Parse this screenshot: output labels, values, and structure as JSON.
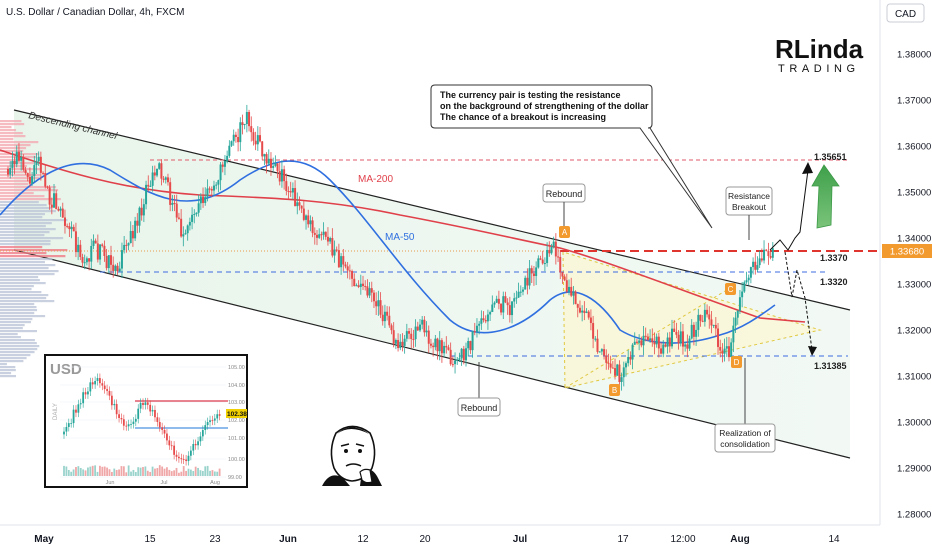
{
  "header": {
    "symbol_title": "U.S. Dollar / Canadian Dollar, 4h, FXCM",
    "currency": "CAD"
  },
  "logo": {
    "text_top": "RLinda",
    "text_bottom": "TRADING"
  },
  "chart_data": {
    "type": "candlestick",
    "title": "U.S. Dollar / Canadian Dollar, 4h, FXCM",
    "ylim": [
      1.275,
      1.39
    ],
    "price_ticks": [
      "1.38000",
      "1.37000",
      "1.36000",
      "1.35000",
      "1.34000",
      "1.33000",
      "1.32000",
      "1.31000",
      "1.30000",
      "1.29000",
      "1.28000"
    ],
    "price_tick_values": [
      1.38,
      1.37,
      1.36,
      1.35,
      1.34,
      1.33,
      1.32,
      1.31,
      1.3,
      1.29,
      1.28
    ],
    "current_price": "1.33680",
    "time_ticks": [
      "May",
      "15",
      "23",
      "Jun",
      "12",
      "20",
      "Jul",
      "17",
      "12:00",
      "Aug",
      "14"
    ],
    "levels": [
      {
        "label": "1.35651",
        "value": 1.35651,
        "color": "#e05a6a"
      },
      {
        "label": "1.3370",
        "value": 1.337,
        "color": "#e0342f"
      },
      {
        "label": "1.3320",
        "value": 1.332,
        "color": "#3d6be0"
      },
      {
        "label": "1.31385",
        "value": 1.31385,
        "color": "#3d6be0"
      }
    ],
    "series": [
      {
        "name": "MA-200",
        "color": "#e0404a"
      },
      {
        "name": "MA-50",
        "color": "#2f6fe0"
      }
    ],
    "annotations": {
      "channel_label": "Descending channel",
      "callout_text": [
        "The currency pair is testing the resistance",
        "on the background of strengthening of the dollar",
        "The chance of a breakout is increasing"
      ],
      "rebound_top": "Rebound",
      "rebound_bottom": "Rebound",
      "resistance_breakout": [
        "Resistance",
        "Breakout"
      ],
      "realization": [
        "Realization of",
        "consolidation"
      ],
      "points": [
        "A",
        "B",
        "C",
        "D"
      ]
    },
    "close_path": [
      1.355,
      1.358,
      1.352,
      1.356,
      1.349,
      1.347,
      1.341,
      1.334,
      1.338,
      1.336,
      1.333,
      1.338,
      1.344,
      1.351,
      1.355,
      1.349,
      1.341,
      1.344,
      1.348,
      1.352,
      1.356,
      1.362,
      1.366,
      1.361,
      1.357,
      1.354,
      1.35,
      1.345,
      1.342,
      1.34,
      1.337,
      1.333,
      1.331,
      1.329,
      1.326,
      1.32,
      1.317,
      1.319,
      1.321,
      1.317,
      1.315,
      1.313,
      1.316,
      1.32,
      1.324,
      1.326,
      1.325,
      1.329,
      1.333,
      1.336,
      1.338,
      1.331,
      1.327,
      1.322,
      1.317,
      1.313,
      1.31,
      1.314,
      1.318,
      1.317,
      1.316,
      1.319,
      1.317,
      1.321,
      1.325,
      1.318,
      1.315,
      1.326,
      1.333,
      1.337,
      1.336
    ]
  },
  "inset": {
    "title": "USD",
    "y_ticks": [
      "105.00",
      "104.00",
      "103.00",
      "102.00",
      "101.00",
      "100.00",
      "99.00"
    ],
    "current": "102.38",
    "x_ticks": [
      "Jun",
      "Jul",
      "Aug"
    ],
    "side_label": "DAILY"
  }
}
